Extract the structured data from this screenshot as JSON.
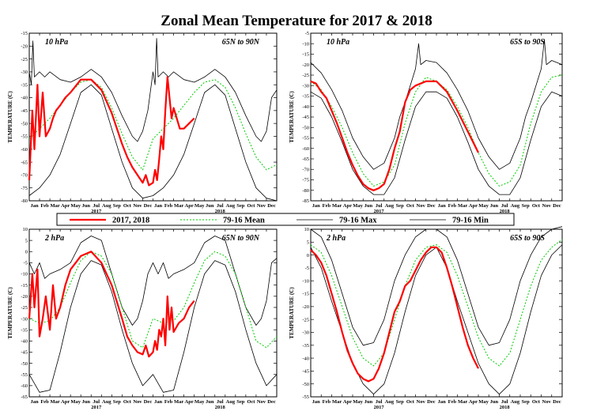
{
  "title": "Zonal Mean Temperature for 2017 & 2018",
  "legend": [
    {
      "label": "2017, 2018",
      "color": "#ff0000",
      "dash": "",
      "width": 2.2
    },
    {
      "label": "79-16 Mean",
      "color": "#00cc00",
      "dash": "2,2",
      "width": 1
    },
    {
      "label": "79-16 Max",
      "color": "#000000",
      "dash": "",
      "width": 0.8
    },
    {
      "label": "79-16 Min",
      "color": "#000000",
      "dash": "",
      "width": 0.8
    }
  ],
  "months": [
    "Jan",
    "Feb",
    "Mar",
    "Apr",
    "May",
    "Jun",
    "Jul",
    "Aug",
    "Sep",
    "Oct",
    "Nov",
    "Dec",
    "Jan",
    "Feb",
    "Mar",
    "Apr",
    "May",
    "Jun",
    "Jul",
    "Aug",
    "Sep",
    "Oct",
    "Nov",
    "Dec"
  ],
  "years": [
    "2017",
    "2018"
  ],
  "chart_data": [
    {
      "type": "line",
      "pressure": "10 hPa",
      "region": "65N to 90N",
      "ylabel": "TEMPERATURE (C)",
      "ylim": [
        -80,
        -15
      ],
      "yticks": [
        -15,
        -20,
        -25,
        -30,
        -35,
        -40,
        -45,
        -50,
        -55,
        -60,
        -65,
        -70,
        -75,
        -80
      ],
      "x": "month index 0-24 (Jan 2017 - Dec 2018)",
      "series": [
        {
          "name": "2017, 2018",
          "x": [
            0,
            0.3,
            0.5,
            0.8,
            1.0,
            1.3,
            1.6,
            2.0,
            2.3,
            2.6,
            3.0,
            3.5,
            4.0,
            5.0,
            6.0,
            7.0,
            8.0,
            9.0,
            9.5,
            10.0,
            10.5,
            11.0,
            11.3,
            11.6,
            12.0,
            12.2,
            12.4,
            12.6,
            12.8,
            13.0,
            13.2,
            13.4,
            13.6,
            13.8,
            14.0,
            14.3,
            14.6,
            15.0,
            15.5,
            16.0
          ],
          "y": [
            -72,
            -45,
            -60,
            -35,
            -55,
            -38,
            -55,
            -52,
            -48,
            -45,
            -43,
            -40,
            -38,
            -33,
            -33,
            -37,
            -46,
            -58,
            -63,
            -67,
            -70,
            -73,
            -70,
            -74,
            -73,
            -68,
            -72,
            -64,
            -55,
            -60,
            -45,
            -32,
            -40,
            -48,
            -44,
            -48,
            -52,
            -52,
            -50,
            -48
          ]
        },
        {
          "name": "79-16 Mean",
          "x": [
            0,
            1,
            2,
            3,
            4,
            5,
            6,
            7,
            8,
            9,
            10,
            11,
            12,
            13,
            14,
            15,
            16,
            17,
            18,
            19,
            20,
            21,
            22,
            23,
            24
          ],
          "y": [
            -56,
            -52,
            -48,
            -43,
            -38,
            -34,
            -33,
            -36,
            -44,
            -54,
            -63,
            -68,
            -56,
            -52,
            -48,
            -43,
            -38,
            -34,
            -33,
            -36,
            -44,
            -54,
            -63,
            -68,
            -66
          ]
        },
        {
          "name": "79-16 Max",
          "x": [
            0,
            0.2,
            0.35,
            0.5,
            1,
            1.5,
            2,
            3,
            4,
            5,
            6,
            7,
            8,
            9,
            10,
            10.5,
            11,
            11.5,
            12,
            12.2,
            12.35,
            12.5,
            13,
            13.5,
            14,
            15,
            16,
            17,
            18,
            19,
            20,
            21,
            22,
            22.5,
            23,
            23.5,
            24
          ],
          "y": [
            -30,
            -35,
            -18,
            -32,
            -30,
            -32,
            -30,
            -33,
            -34,
            -32,
            -29,
            -32,
            -38,
            -47,
            -55,
            -57,
            -53,
            -45,
            -30,
            -35,
            -17,
            -32,
            -30,
            -32,
            -30,
            -33,
            -34,
            -32,
            -29,
            -32,
            -38,
            -47,
            -55,
            -57,
            -53,
            -40,
            -37
          ]
        },
        {
          "name": "79-16 Min",
          "x": [
            0,
            1,
            2,
            3,
            4,
            5,
            6,
            7,
            8,
            9,
            10,
            11,
            12,
            13,
            14,
            15,
            16,
            17,
            18,
            19,
            20,
            21,
            22,
            23,
            24
          ],
          "y": [
            -78,
            -75,
            -70,
            -62,
            -50,
            -38,
            -35,
            -39,
            -52,
            -65,
            -75,
            -79,
            -78,
            -75,
            -70,
            -62,
            -50,
            -38,
            -35,
            -39,
            -52,
            -65,
            -75,
            -79,
            -80
          ]
        }
      ]
    },
    {
      "type": "line",
      "pressure": "10 hPa",
      "region": "65S to 90S",
      "ylabel": "TEMPERATURE (C)",
      "ylim": [
        -85,
        -5
      ],
      "yticks": [
        -5,
        -10,
        -15,
        -20,
        -25,
        -30,
        -35,
        -40,
        -45,
        -50,
        -55,
        -60,
        -65,
        -70,
        -75,
        -80,
        -85
      ],
      "x": "month index 0-24 (Jan 2017 - Dec 2018)",
      "series": [
        {
          "name": "2017, 2018",
          "x": [
            0,
            0.5,
            1,
            1.5,
            2,
            2.5,
            3,
            3.5,
            4,
            4.5,
            5,
            5.5,
            6,
            6.5,
            7,
            7.5,
            8,
            8.5,
            9,
            9.5,
            10,
            11,
            12,
            13,
            14,
            15,
            16
          ],
          "y": [
            -28,
            -29,
            -33,
            -36,
            -42,
            -48,
            -55,
            -62,
            -68,
            -73,
            -77,
            -79,
            -80,
            -79,
            -77,
            -70,
            -60,
            -52,
            -38,
            -32,
            -30,
            -28,
            -28,
            -33,
            -42,
            -52,
            -62
          ]
        },
        {
          "name": "79-16 Mean",
          "x": [
            0,
            1,
            2,
            3,
            4,
            5,
            6,
            7,
            8,
            9,
            10,
            11,
            12,
            13,
            14,
            15,
            16,
            17,
            18,
            19,
            20,
            21,
            22,
            23,
            24
          ],
          "y": [
            -28,
            -32,
            -40,
            -50,
            -62,
            -72,
            -78,
            -76,
            -68,
            -48,
            -33,
            -26,
            -28,
            -32,
            -40,
            -50,
            -62,
            -72,
            -78,
            -76,
            -68,
            -48,
            -33,
            -26,
            -25
          ]
        },
        {
          "name": "79-16 Max",
          "x": [
            0,
            1,
            2,
            3,
            4,
            5,
            6,
            7,
            8,
            8.5,
            9,
            9.5,
            10,
            10.3,
            10.5,
            11,
            12,
            13,
            14,
            15,
            16,
            17,
            18,
            19,
            20,
            20.5,
            21,
            21.5,
            22,
            22.3,
            22.5,
            23,
            24
          ],
          "y": [
            -19,
            -24,
            -32,
            -42,
            -55,
            -64,
            -70,
            -67,
            -55,
            -45,
            -38,
            -30,
            -22,
            -10,
            -20,
            -18,
            -19,
            -24,
            -32,
            -42,
            -55,
            -64,
            -70,
            -67,
            -55,
            -45,
            -38,
            -30,
            -22,
            -8,
            -20,
            -18,
            -20
          ]
        },
        {
          "name": "79-16 Min",
          "x": [
            0,
            1,
            2,
            3,
            4,
            5,
            6,
            7,
            8,
            9,
            10,
            11,
            12,
            13,
            14,
            15,
            16,
            17,
            18,
            19,
            20,
            21,
            22,
            23,
            24
          ],
          "y": [
            -33,
            -36,
            -45,
            -57,
            -70,
            -78,
            -82,
            -82,
            -74,
            -56,
            -40,
            -33,
            -33,
            -36,
            -45,
            -57,
            -70,
            -78,
            -82,
            -82,
            -74,
            -56,
            -40,
            -33,
            -35
          ]
        }
      ]
    },
    {
      "type": "line",
      "pressure": "2 hPa",
      "region": "65N to 90N",
      "ylabel": "TEMPERATURE (C)",
      "ylim": [
        -65,
        10
      ],
      "yticks": [
        10,
        5,
        0,
        -5,
        -10,
        -15,
        -20,
        -25,
        -30,
        -35,
        -40,
        -45,
        -50,
        -55,
        -60,
        -65
      ],
      "x": "month index 0-24 (Jan 2017 - Dec 2018)",
      "series": [
        {
          "name": "2017, 2018",
          "x": [
            0,
            0.3,
            0.5,
            0.8,
            1.0,
            1.3,
            1.6,
            2.0,
            2.3,
            2.6,
            3.0,
            3.5,
            4.0,
            5.0,
            6.0,
            7.0,
            8.0,
            9.0,
            9.5,
            10.0,
            10.5,
            11.0,
            11.3,
            11.6,
            12.0,
            12.2,
            12.4,
            12.6,
            12.8,
            13.0,
            13.2,
            13.4,
            13.6,
            13.8,
            14.0,
            14.5,
            15.0,
            15.5,
            16.0
          ],
          "y": [
            -30,
            -10,
            -25,
            -8,
            -38,
            -30,
            -20,
            -35,
            -15,
            -30,
            -25,
            -15,
            -8,
            -2,
            0,
            -5,
            -15,
            -30,
            -38,
            -42,
            -45,
            -46,
            -42,
            -47,
            -45,
            -40,
            -44,
            -35,
            -38,
            -30,
            -42,
            -20,
            -35,
            -25,
            -36,
            -32,
            -30,
            -25,
            -22
          ]
        },
        {
          "name": "79-16 Mean",
          "x": [
            0,
            1,
            2,
            3,
            4,
            5,
            6,
            7,
            8,
            9,
            10,
            11,
            12,
            13,
            14,
            15,
            16,
            17,
            18,
            19,
            20,
            21,
            22,
            23,
            24
          ],
          "y": [
            -30,
            -32,
            -31,
            -25,
            -14,
            -4,
            0,
            -2,
            -10,
            -25,
            -40,
            -43,
            -30,
            -32,
            -31,
            -25,
            -14,
            -4,
            0,
            -2,
            -10,
            -25,
            -40,
            -43,
            -38
          ]
        },
        {
          "name": "79-16 Max",
          "x": [
            0,
            0.5,
            1,
            1.5,
            2,
            3,
            4,
            5,
            6,
            7,
            8,
            9,
            10,
            10.5,
            11,
            11.5,
            12,
            12.5,
            13,
            13.5,
            14,
            15,
            16,
            17,
            18,
            19,
            20,
            21,
            22,
            22.5,
            23,
            23.5,
            24
          ],
          "y": [
            -5,
            -10,
            -5,
            -12,
            -10,
            -8,
            -5,
            4,
            7,
            5,
            -10,
            -25,
            -33,
            -30,
            -22,
            -10,
            -5,
            -10,
            -5,
            -12,
            -10,
            -8,
            -5,
            4,
            7,
            5,
            -10,
            -25,
            -33,
            -30,
            -22,
            -5,
            -3
          ]
        },
        {
          "name": "79-16 Min",
          "x": [
            0,
            1,
            2,
            3,
            4,
            5,
            6,
            7,
            8,
            9,
            10,
            11,
            12,
            13,
            14,
            15,
            16,
            17,
            18,
            19,
            20,
            21,
            22,
            23,
            24
          ],
          "y": [
            -55,
            -63,
            -62,
            -45,
            -25,
            -10,
            -4,
            -6,
            -18,
            -35,
            -50,
            -60,
            -55,
            -63,
            -62,
            -45,
            -25,
            -10,
            -4,
            -6,
            -18,
            -35,
            -50,
            -60,
            -55
          ]
        }
      ]
    },
    {
      "type": "line",
      "pressure": "2 hPa",
      "region": "65S to 90S",
      "ylabel": "TEMPERATURE (C)",
      "ylim": [
        -55,
        10
      ],
      "yticks": [
        10,
        5,
        0,
        -5,
        -10,
        -15,
        -20,
        -25,
        -30,
        -35,
        -40,
        -45,
        -50,
        -55
      ],
      "x": "month index 0-24 (Jan 2017 - Dec 2018)",
      "series": [
        {
          "name": "2017, 2018",
          "x": [
            0,
            0.5,
            1,
            1.5,
            2,
            2.5,
            3,
            3.5,
            4,
            4.5,
            5,
            5.5,
            6,
            6.5,
            7,
            7.5,
            8,
            8.5,
            9,
            9.5,
            10,
            10.5,
            11,
            11.5,
            12,
            12.5,
            13,
            13.5,
            14,
            14.5,
            15,
            15.5,
            16
          ],
          "y": [
            2,
            0,
            -3,
            -8,
            -15,
            -22,
            -30,
            -37,
            -42,
            -46,
            -48,
            -49,
            -48,
            -44,
            -38,
            -30,
            -22,
            -18,
            -12,
            -10,
            -6,
            -2,
            1,
            3,
            3,
            1,
            -5,
            -12,
            -20,
            -28,
            -35,
            -40,
            -44
          ]
        },
        {
          "name": "79-16 Mean",
          "x": [
            0,
            1,
            2,
            3,
            4,
            5,
            6,
            7,
            8,
            9,
            10,
            11,
            12,
            13,
            14,
            15,
            16,
            17,
            18,
            19,
            20,
            21,
            22,
            23,
            24
          ],
          "y": [
            4,
            1,
            -8,
            -20,
            -32,
            -40,
            -43,
            -38,
            -25,
            -12,
            -2,
            3,
            4,
            1,
            -8,
            -20,
            -32,
            -40,
            -43,
            -38,
            -25,
            -12,
            -2,
            3,
            6
          ]
        },
        {
          "name": "79-16 Max",
          "x": [
            0,
            1,
            2,
            3,
            4,
            5,
            6,
            7,
            8,
            9,
            10,
            11,
            12,
            13,
            14,
            15,
            16,
            17,
            18,
            19,
            20,
            21,
            22,
            23,
            24
          ],
          "y": [
            10,
            7,
            -2,
            -15,
            -28,
            -35,
            -34,
            -25,
            -10,
            0,
            7,
            10,
            10,
            7,
            -2,
            -15,
            -28,
            -35,
            -34,
            -25,
            -10,
            0,
            7,
            10,
            11
          ]
        },
        {
          "name": "79-16 Min",
          "x": [
            0,
            1,
            2,
            3,
            4,
            5,
            6,
            7,
            8,
            9,
            10,
            11,
            12,
            13,
            14,
            15,
            16,
            17,
            18,
            19,
            20,
            21,
            22,
            23,
            24
          ],
          "y": [
            3,
            -5,
            -18,
            -30,
            -42,
            -50,
            -54,
            -50,
            -38,
            -22,
            -8,
            0,
            3,
            -5,
            -18,
            -30,
            -42,
            -50,
            -54,
            -50,
            -38,
            -22,
            -8,
            0,
            4
          ]
        }
      ]
    }
  ]
}
